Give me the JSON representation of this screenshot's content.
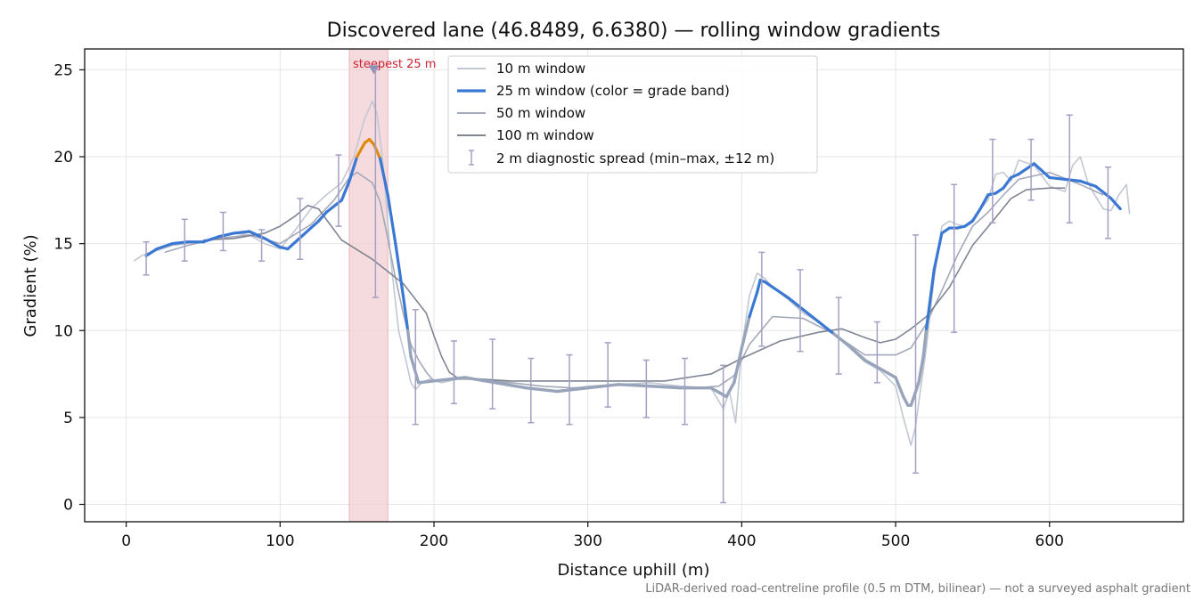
{
  "chart_data": {
    "type": "line",
    "title": "Discovered lane (46.8489, 6.6380) — rolling window gradients",
    "xlabel": "Distance uphill (m)",
    "ylabel": "Gradient (%)",
    "xlim": [
      -27,
      687
    ],
    "ylim": [
      -1,
      26.2
    ],
    "xticks": [
      0,
      100,
      200,
      300,
      400,
      500,
      600
    ],
    "yticks": [
      0,
      5,
      10,
      15,
      20,
      25
    ],
    "grid": true,
    "legend_position": "upper-center",
    "footnote": "LiDAR-derived road-centreline profile (0.5 m DTM, bilinear) — not a surveyed asphalt gradient",
    "highlight": {
      "x_start": 145,
      "x_end": 170,
      "label": "steepest 25 m",
      "peak_x": 161,
      "peak_y": 25
    },
    "colors": {
      "win10": "#c2c8d3",
      "win25": "#3a78d4",
      "win25_muted": "#97a4b9",
      "win25_steep": "#e08a0b",
      "win50": "#a3a9b8",
      "win100": "#7f8592",
      "errbar": "#a3a0c4",
      "highlight_fill": "#f2d2d5",
      "highlight_text": "#cc2233"
    },
    "series": [
      {
        "name": "10 m window",
        "x": [
          5,
          10,
          15,
          20,
          30,
          40,
          50,
          60,
          70,
          80,
          90,
          100,
          110,
          120,
          130,
          140,
          148,
          155,
          160,
          163,
          167,
          172,
          177,
          182,
          185,
          188,
          192,
          197,
          205,
          220,
          240,
          260,
          280,
          300,
          320,
          340,
          360,
          380,
          388,
          392,
          396,
          400,
          405,
          410,
          415,
          420,
          430,
          440,
          450,
          460,
          470,
          480,
          490,
          500,
          505,
          510,
          513,
          516,
          520,
          525,
          530,
          535,
          540,
          545,
          550,
          560,
          565,
          570,
          575,
          580,
          590,
          600,
          610,
          615,
          620,
          625,
          630,
          635,
          640,
          645,
          650,
          652
        ],
        "y": [
          14.0,
          14.3,
          14.5,
          14.6,
          14.9,
          15.0,
          15.1,
          15.3,
          15.6,
          15.5,
          15.0,
          14.7,
          15.8,
          17.0,
          17.8,
          18.5,
          20.0,
          22.2,
          23.2,
          22.5,
          19.5,
          14.0,
          10.0,
          8.2,
          7.0,
          6.6,
          7.0,
          7.2,
          7.0,
          7.3,
          7.1,
          6.7,
          6.5,
          6.8,
          6.9,
          7.0,
          6.8,
          6.7,
          5.5,
          6.5,
          4.7,
          9.0,
          12.0,
          13.3,
          13.0,
          12.5,
          11.8,
          11.0,
          10.5,
          9.8,
          9.0,
          8.2,
          7.7,
          6.8,
          5.0,
          3.4,
          4.5,
          6.5,
          9.0,
          13.0,
          16.0,
          16.3,
          16.1,
          16.0,
          16.4,
          17.5,
          19.0,
          19.1,
          18.6,
          19.8,
          19.5,
          18.3,
          18.0,
          19.5,
          20.0,
          18.5,
          17.7,
          17.0,
          16.9,
          17.8,
          18.4,
          16.7
        ]
      },
      {
        "name": "25 m window (color = grade band)",
        "x": [
          13,
          20,
          30,
          40,
          50,
          60,
          70,
          80,
          90,
          100,
          105,
          115,
          125,
          130,
          140,
          145,
          150,
          155,
          158,
          161,
          165,
          170,
          175,
          180,
          183,
          185,
          190,
          200,
          210,
          220,
          240,
          260,
          280,
          300,
          320,
          340,
          360,
          380,
          386,
          390,
          395,
          400,
          405,
          410,
          412,
          415,
          420,
          430,
          440,
          450,
          460,
          470,
          480,
          490,
          500,
          505,
          508,
          510,
          515,
          518,
          520,
          525,
          530,
          535,
          540,
          545,
          550,
          555,
          560,
          565,
          570,
          575,
          580,
          590,
          600,
          610,
          620,
          630,
          640,
          646
        ],
        "y": [
          14.3,
          14.7,
          15.0,
          15.1,
          15.1,
          15.4,
          15.6,
          15.7,
          15.3,
          14.8,
          14.7,
          15.5,
          16.3,
          16.8,
          17.5,
          18.6,
          20.0,
          20.8,
          21.0,
          20.7,
          19.9,
          17.8,
          15.0,
          12.0,
          10.0,
          8.5,
          7.0,
          7.1,
          7.2,
          7.3,
          7.0,
          6.7,
          6.5,
          6.7,
          6.9,
          6.8,
          6.7,
          6.7,
          6.4,
          6.2,
          7.0,
          9.0,
          10.8,
          12.2,
          12.9,
          12.8,
          12.5,
          11.9,
          11.2,
          10.5,
          9.8,
          9.1,
          8.3,
          7.8,
          7.3,
          6.2,
          5.7,
          5.7,
          7.0,
          8.5,
          10.1,
          13.5,
          15.6,
          15.9,
          15.9,
          16.0,
          16.3,
          17.0,
          17.8,
          17.9,
          18.2,
          18.8,
          19.0,
          19.6,
          18.8,
          18.7,
          18.6,
          18.3,
          17.6,
          17.0
        ]
      },
      {
        "name": "50 m window",
        "x": [
          25,
          40,
          60,
          80,
          100,
          120,
          135,
          145,
          150,
          160,
          165,
          170,
          175,
          180,
          185,
          190,
          195,
          200,
          210,
          230,
          250,
          270,
          290,
          310,
          330,
          350,
          370,
          385,
          395,
          405,
          420,
          440,
          460,
          480,
          500,
          510,
          520,
          530,
          540,
          550,
          560,
          570,
          580,
          600,
          620,
          635
        ],
        "y": [
          14.5,
          14.9,
          15.3,
          15.5,
          15.0,
          16.1,
          17.5,
          18.8,
          19.1,
          18.5,
          17.4,
          15.3,
          13.0,
          11.0,
          9.2,
          8.3,
          7.6,
          7.1,
          7.2,
          7.2,
          7.0,
          6.8,
          6.7,
          6.8,
          6.9,
          6.8,
          6.7,
          6.8,
          7.4,
          9.2,
          10.8,
          10.7,
          9.8,
          8.6,
          8.6,
          9.0,
          10.4,
          12.3,
          14.3,
          16.0,
          16.8,
          17.8,
          18.7,
          19.1,
          18.4,
          17.8
        ]
      },
      {
        "name": "100 m window",
        "x": [
          50,
          70,
          90,
          100,
          110,
          118,
          125,
          140,
          160,
          180,
          195,
          200,
          205,
          210,
          215,
          250,
          300,
          350,
          380,
          400,
          425,
          450,
          465,
          480,
          490,
          500,
          510,
          520,
          535,
          550,
          565,
          575,
          585,
          600,
          610
        ],
        "y": [
          15.2,
          15.3,
          15.6,
          16.0,
          16.6,
          17.2,
          17.0,
          15.2,
          14.1,
          12.7,
          11.0,
          9.7,
          8.5,
          7.6,
          7.3,
          7.1,
          7.1,
          7.1,
          7.5,
          8.4,
          9.4,
          9.9,
          10.1,
          9.6,
          9.3,
          9.5,
          10.1,
          10.8,
          12.5,
          14.9,
          16.5,
          17.6,
          18.1,
          18.2,
          18.2
        ]
      }
    ],
    "errorbars": {
      "name": "2 m diagnostic spread (min–max, ±12 m)",
      "x": [
        13,
        38,
        63,
        88,
        113,
        138,
        162,
        188,
        213,
        238,
        263,
        288,
        313,
        338,
        363,
        388,
        413,
        438,
        463,
        488,
        513,
        538,
        563,
        588,
        613,
        638
      ],
      "low": [
        13.2,
        14.0,
        14.6,
        14.0,
        14.1,
        16.0,
        11.9,
        4.6,
        5.8,
        5.5,
        4.7,
        4.6,
        5.6,
        5.0,
        4.6,
        0.1,
        9.1,
        8.8,
        7.5,
        7.0,
        1.8,
        9.9,
        16.2,
        17.5,
        16.2,
        15.3
      ],
      "high": [
        15.1,
        16.4,
        16.8,
        15.8,
        17.6,
        20.1,
        25.0,
        11.2,
        9.4,
        9.5,
        8.4,
        8.6,
        9.3,
        8.3,
        8.4,
        8.0,
        14.5,
        13.5,
        11.9,
        10.5,
        15.5,
        18.4,
        21.0,
        21.0,
        22.4,
        19.4
      ]
    }
  }
}
